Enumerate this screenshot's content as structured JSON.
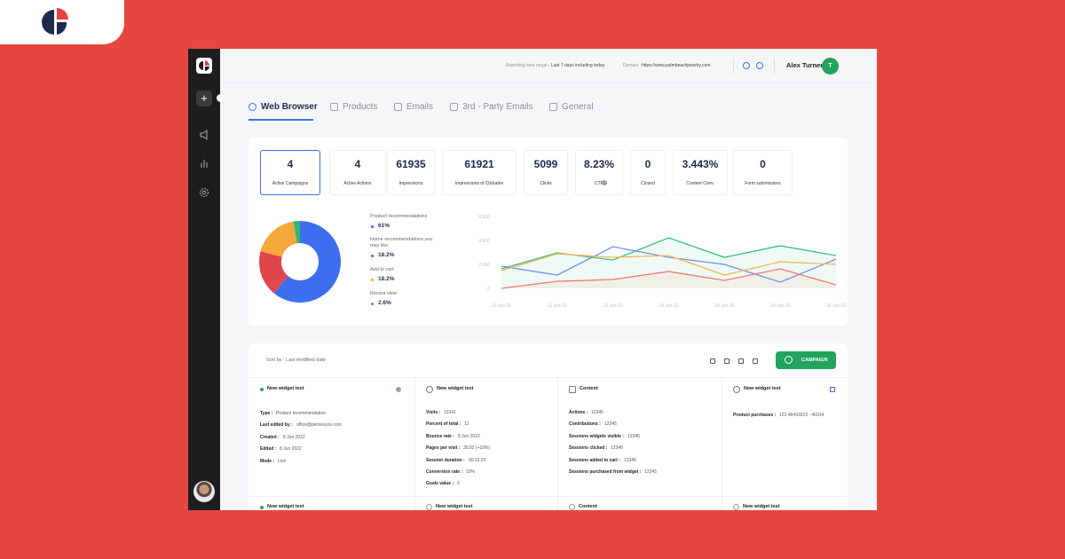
{
  "header": {
    "time_range_label": "Reporting time range :",
    "time_range": "Last 7 days including today",
    "domain_label": "Domain :",
    "domain": "https://www.palmbeachjewelry.com",
    "user": "Alex Turner",
    "avatar": "T"
  },
  "tabs": [
    "Web Browser",
    "Products",
    "Emails",
    "3rd - Party Emails",
    "General"
  ],
  "stats": [
    {
      "value": "4",
      "label": "Active Campaigns"
    },
    {
      "value": "4",
      "label": "Active Actions"
    },
    {
      "value": "61935",
      "label": "Impressions"
    },
    {
      "value": "61921",
      "label": "Impressions of Clickable"
    },
    {
      "value": "5099",
      "label": "Clicks"
    },
    {
      "value": "8.23%",
      "label": "CTR"
    },
    {
      "value": "0",
      "label": "Closed"
    },
    {
      "value": "3.443%",
      "label": "Content Conv."
    },
    {
      "value": "0",
      "label": "Form submissions"
    }
  ],
  "chart_data": [
    {
      "type": "pie",
      "categories": [
        "Product recommendations",
        "Home recommendations you may like",
        "Add to cart",
        "Recent view"
      ],
      "values": [
        61,
        18.2,
        18.2,
        2.6
      ],
      "value_labels": [
        "61%",
        "18.2%",
        "18.2%",
        "2.6%"
      ],
      "colors": [
        "#3d6ef0",
        "#e0474c",
        "#f7a83a",
        "#2dba6e"
      ]
    },
    {
      "type": "line",
      "x": [
        "10 Jun 22",
        "11 Jun 22",
        "12 Jun 22",
        "13 Jun 22",
        "14 Jun 22",
        "15 Jun 22",
        "16 Jun 22"
      ],
      "ylim": [
        0,
        6000
      ],
      "yticks": [
        0,
        {
          "value": 2000,
          "label": "2,000"
        },
        {
          "value": 4000,
          "label": "4,000"
        },
        {
          "value": 6000,
          "label": "6,000"
        }
      ],
      "series": [
        {
          "color": "#3cbf7a",
          "values": [
            1630,
            2960,
            2370,
            4220,
            2590,
            3560,
            2740
          ]
        },
        {
          "color": "#6d8ff0",
          "values": [
            1850,
            1110,
            3480,
            2590,
            2000,
            520,
            2440
          ]
        },
        {
          "color": "#f6b35c",
          "values": [
            1480,
            2890,
            2590,
            2740,
            1110,
            2220,
            2000
          ]
        },
        {
          "color": "#ef7a6a",
          "values": [
            0,
            590,
            740,
            1410,
            670,
            1630,
            300
          ]
        }
      ]
    }
  ],
  "toolbar": {
    "sort_label": "Sort by : Last modified date",
    "button": "CAMPAIGN"
  },
  "widgets": [
    {
      "title": "New widget test",
      "rows": [
        [
          "Type :",
          "Product recommendation"
        ],
        [
          "Last edited by :",
          "office@personyze.com"
        ],
        [
          "Created :",
          "8 Jun 2022"
        ],
        [
          "Edited :",
          "8 Jun 2022"
        ],
        [
          "Mode :",
          "Live"
        ]
      ]
    },
    {
      "title": "New widget test",
      "rows": [
        [
          "Visits :",
          "12341"
        ],
        [
          "Percent of total :",
          "12"
        ],
        [
          "Bounce rate :",
          "8 Jun 2022"
        ],
        [
          "Pages per visit :",
          "30.02 (+10%)"
        ],
        [
          "Session duration :",
          "00:12:23"
        ],
        [
          "Conversion rate :",
          "10%"
        ],
        [
          "Goals value :",
          "0"
        ]
      ]
    },
    {
      "title": "Content",
      "rows": [
        [
          "Actions :",
          "12345"
        ],
        [
          "Contributions :",
          "12345"
        ],
        [
          "Sessions widgets visible :",
          "12345"
        ],
        [
          "Sessions clicked :",
          "12345"
        ],
        [
          "Sessions added to cart :",
          "12345"
        ],
        [
          "Sessions purchased from widget :",
          "12345"
        ]
      ]
    },
    {
      "title": "New widget test",
      "rows": [
        [
          "Product purchases :",
          "123 48493023 - 40314"
        ]
      ]
    }
  ],
  "widgets_next": [
    "New widget test",
    "New widget test",
    "Content",
    "New widget test"
  ]
}
